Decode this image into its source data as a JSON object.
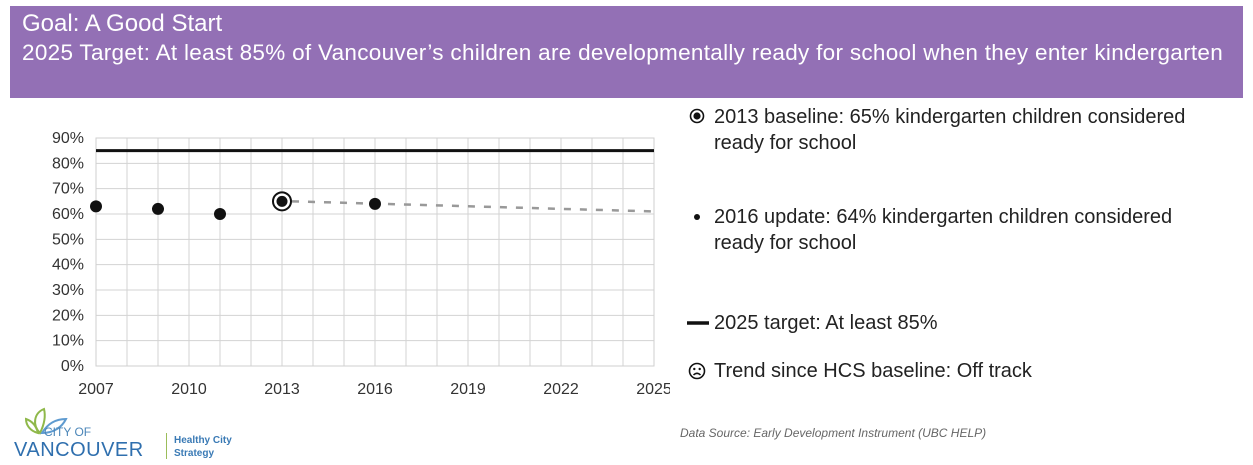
{
  "header": {
    "goal": "Goal: A Good Start",
    "target": "2025 Target: At least 85% of Vancouver’s children are developmentally ready for school when they enter kindergarten"
  },
  "legend": {
    "baseline": "2013 baseline: 65% kindergarten children considered ready for school",
    "update": "2016 update: 64% kindergarten children considered ready for school",
    "target_line": "2025 target: At least 85%",
    "trend": "Trend since HCS baseline: Off track"
  },
  "source": "Data Source: Early Development Instrument (UBC HELP)",
  "logo": {
    "city_of": "CITY OF",
    "vancouver": "VANCOUVER",
    "hcs_line1": "Healthy City",
    "hcs_line2": "Strategy"
  },
  "chart_data": {
    "type": "scatter",
    "xlim": [
      2007,
      2025
    ],
    "ylim": [
      0,
      90
    ],
    "x_ticks": [
      "2007",
      "2010",
      "2013",
      "2016",
      "2019",
      "2022",
      "2025"
    ],
    "y_ticks": [
      "0%",
      "10%",
      "20%",
      "30%",
      "40%",
      "50%",
      "60%",
      "70%",
      "80%",
      "90%"
    ],
    "grid": true,
    "points": [
      {
        "x": 2007,
        "y": 63
      },
      {
        "x": 2009,
        "y": 62
      },
      {
        "x": 2011,
        "y": 60
      },
      {
        "x": 2013,
        "y": 65,
        "baseline": true
      },
      {
        "x": 2016,
        "y": 64
      }
    ],
    "target": {
      "y": 85
    },
    "trend": [
      {
        "x": 2013,
        "y": 65
      },
      {
        "x": 2025,
        "y": 61
      }
    ]
  }
}
